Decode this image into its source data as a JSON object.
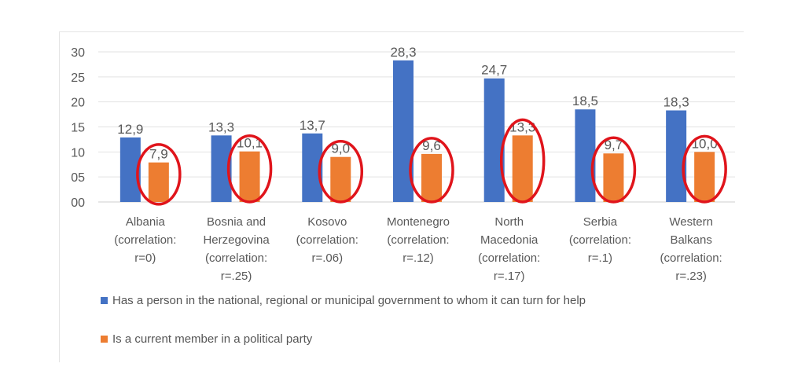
{
  "chart_data": {
    "type": "bar",
    "categories": [
      [
        "Albania",
        "(correlation:",
        "r=0)"
      ],
      [
        "Bosnia and",
        "Herzegovina",
        "(correlation:",
        "r=.25)"
      ],
      [
        "Kosovo",
        "(correlation:",
        "r=.06)"
      ],
      [
        "Montenegro",
        "(correlation:",
        "r=.12)"
      ],
      [
        "North",
        "Macedonia",
        "(correlation:",
        "r=.17)"
      ],
      [
        "Serbia",
        "(correlation:",
        "r=.1)"
      ],
      [
        "Western",
        "Balkans",
        "(correlation:",
        "r=.23)"
      ]
    ],
    "series": [
      {
        "name": "Has a person in the national, regional or municipal government to whom it can turn for help",
        "color": "#4472c4",
        "values": [
          12.9,
          13.3,
          13.7,
          28.3,
          24.7,
          18.5,
          18.3
        ],
        "labels": [
          "12,9",
          "13,3",
          "13,7",
          "28,3",
          "24,7",
          "18,5",
          "18,3"
        ]
      },
      {
        "name": "Is a current member in a political party",
        "color": "#ed7d31",
        "values": [
          7.9,
          10.1,
          9.0,
          9.6,
          13.3,
          9.7,
          10.0
        ],
        "labels": [
          "7,9",
          "10,1",
          "9,0",
          "9,6",
          "13,3",
          "9,7",
          "10,0"
        ]
      }
    ],
    "ylim": [
      0,
      30
    ],
    "yticks": [
      0,
      5,
      10,
      15,
      20,
      25,
      30
    ],
    "yticklabels": [
      "00",
      "05",
      "10",
      "15",
      "20",
      "25",
      "30"
    ],
    "grid": true,
    "legend_position": "bottom-left",
    "annotation": "red ellipses circling each orange bar",
    "annotation_color": "#e0141b"
  }
}
